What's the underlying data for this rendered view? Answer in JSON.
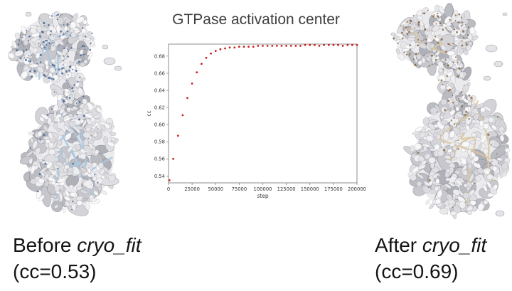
{
  "figure": {
    "background": "#ffffff"
  },
  "chart_data": {
    "type": "scatter",
    "title": "GTPase activation center",
    "xlabel": "step",
    "ylabel": "cc",
    "xlim": [
      0,
      200000
    ],
    "ylim": [
      0.532,
      0.694
    ],
    "xticks": [
      0,
      25000,
      50000,
      75000,
      100000,
      125000,
      150000,
      175000,
      200000
    ],
    "yticks": [
      0.54,
      0.56,
      0.58,
      0.6,
      0.62,
      0.64,
      0.66,
      0.68
    ],
    "grid": false,
    "legend": null,
    "marker_color": "#cc2222",
    "frame_color": "#707070",
    "series": [
      {
        "name": "cc",
        "x": [
          1000,
          5000,
          10000,
          15000,
          20000,
          25000,
          30000,
          35000,
          40000,
          45000,
          50000,
          55000,
          60000,
          65000,
          70000,
          75000,
          80000,
          85000,
          90000,
          95000,
          100000,
          105000,
          110000,
          115000,
          120000,
          125000,
          130000,
          135000,
          140000,
          145000,
          150000,
          155000,
          160000,
          165000,
          170000,
          175000,
          180000,
          185000,
          190000,
          195000,
          200000
        ],
        "y": [
          0.535,
          0.56,
          0.587,
          0.611,
          0.631,
          0.648,
          0.661,
          0.671,
          0.678,
          0.683,
          0.686,
          0.688,
          0.689,
          0.69,
          0.69,
          0.691,
          0.691,
          0.691,
          0.691,
          0.692,
          0.692,
          0.692,
          0.692,
          0.692,
          0.692,
          0.692,
          0.692,
          0.692,
          0.692,
          0.693,
          0.693,
          0.693,
          0.692,
          0.693,
          0.693,
          0.693,
          0.693,
          0.692,
          0.693,
          0.693,
          0.693
        ]
      }
    ]
  },
  "captions": {
    "before": {
      "prefix": "Before ",
      "method": "cryo_fit",
      "cc": "(cc=0.53)"
    },
    "after": {
      "prefix": "After ",
      "method": "cryo_fit",
      "cc": "(cc=0.69)"
    }
  },
  "molecules": {
    "before": {
      "label": "cryo-EM map with fitted model before cryo_fit",
      "map_color": "#d9d9de",
      "ribbon_color": "#a9c8de",
      "speck_color": "#4a6a96"
    },
    "after": {
      "label": "cryo-EM map with fitted model after cryo_fit",
      "map_color": "#d9d9de",
      "ribbon_color": "#dcc9a2",
      "speck_color": "#8a6a44"
    }
  }
}
